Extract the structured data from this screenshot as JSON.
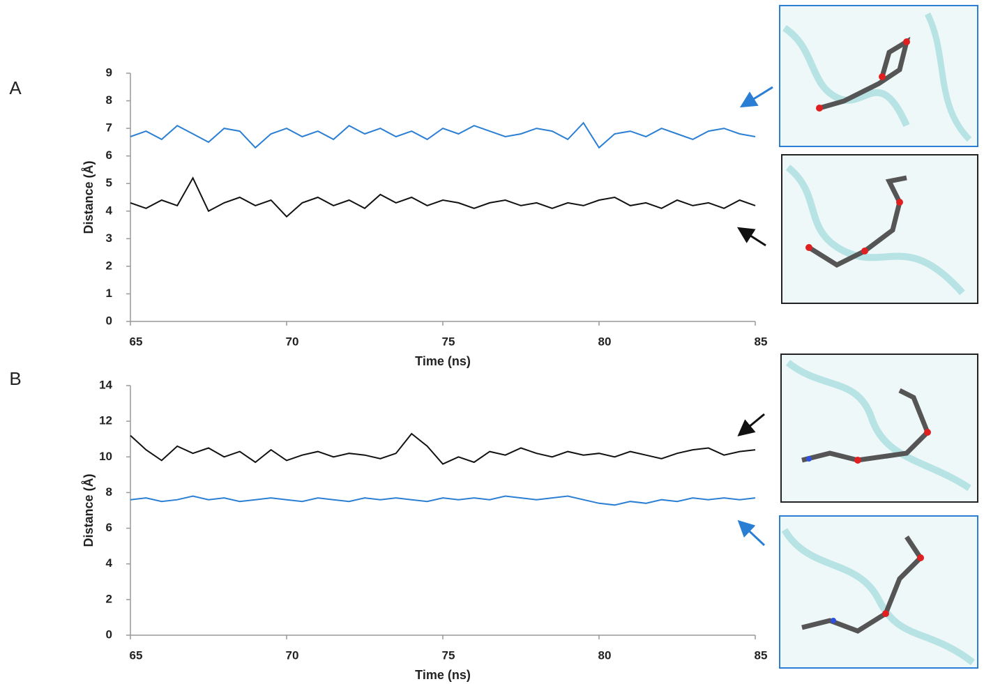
{
  "chart_data": [
    {
      "type": "line",
      "panel": "A",
      "xlabel": "Time (ns)",
      "ylabel": "Distance (Å)",
      "x": [
        65,
        65.5,
        66,
        66.5,
        67,
        67.5,
        68,
        68.5,
        69,
        69.5,
        70,
        70.5,
        71,
        71.5,
        72,
        72.5,
        73,
        73.5,
        74,
        74.5,
        75,
        75.5,
        76,
        76.5,
        77,
        77.5,
        78,
        78.5,
        79,
        79.5,
        80,
        80.5,
        81,
        81.5,
        82,
        82.5,
        83,
        83.5,
        84,
        84.5,
        85
      ],
      "series": [
        {
          "color": "#2a7fd4",
          "values": [
            6.7,
            6.9,
            6.6,
            7.1,
            6.8,
            6.5,
            7.0,
            6.9,
            6.3,
            6.8,
            7.0,
            6.7,
            6.9,
            6.6,
            7.1,
            6.8,
            7.0,
            6.7,
            6.9,
            6.6,
            7.0,
            6.8,
            7.1,
            6.9,
            6.7,
            6.8,
            7.0,
            6.9,
            6.6,
            7.2,
            6.3,
            6.8,
            6.9,
            6.7,
            7.0,
            6.8,
            6.6,
            6.9,
            7.0,
            6.8,
            6.7
          ]
        },
        {
          "color": "#111111",
          "values": [
            4.3,
            4.1,
            4.4,
            4.2,
            5.2,
            4.0,
            4.3,
            4.5,
            4.2,
            4.4,
            3.8,
            4.3,
            4.5,
            4.2,
            4.4,
            4.1,
            4.6,
            4.3,
            4.5,
            4.2,
            4.4,
            4.3,
            4.1,
            4.3,
            4.4,
            4.2,
            4.3,
            4.1,
            4.3,
            4.2,
            4.4,
            4.5,
            4.2,
            4.3,
            4.1,
            4.4,
            4.2,
            4.3,
            4.1,
            4.4,
            4.2
          ]
        }
      ],
      "xlim": [
        65,
        85
      ],
      "xticks": [
        65,
        70,
        75,
        80,
        85
      ],
      "ylim": [
        0,
        9
      ],
      "yticks": [
        0,
        1,
        2,
        3,
        4,
        5,
        6,
        7,
        8,
        9
      ]
    },
    {
      "type": "line",
      "panel": "B",
      "xlabel": "Time (ns)",
      "ylabel": "Distance (Å)",
      "x": [
        65,
        65.5,
        66,
        66.5,
        67,
        67.5,
        68,
        68.5,
        69,
        69.5,
        70,
        70.5,
        71,
        71.5,
        72,
        72.5,
        73,
        73.5,
        74,
        74.5,
        75,
        75.5,
        76,
        76.5,
        77,
        77.5,
        78,
        78.5,
        79,
        79.5,
        80,
        80.5,
        81,
        81.5,
        82,
        82.5,
        83,
        83.5,
        84,
        84.5,
        85
      ],
      "series": [
        {
          "color": "#111111",
          "values": [
            11.2,
            10.4,
            9.8,
            10.6,
            10.2,
            10.5,
            10.0,
            10.3,
            9.7,
            10.4,
            9.8,
            10.1,
            10.3,
            10.0,
            10.2,
            10.1,
            9.9,
            10.2,
            11.3,
            10.6,
            9.6,
            10.0,
            9.7,
            10.3,
            10.1,
            10.5,
            10.2,
            10.0,
            10.3,
            10.1,
            10.2,
            10.0,
            10.3,
            10.1,
            9.9,
            10.2,
            10.4,
            10.5,
            10.1,
            10.3,
            10.4
          ]
        },
        {
          "color": "#2a7fd4",
          "values": [
            7.6,
            7.7,
            7.5,
            7.6,
            7.8,
            7.6,
            7.7,
            7.5,
            7.6,
            7.7,
            7.6,
            7.5,
            7.7,
            7.6,
            7.5,
            7.7,
            7.6,
            7.7,
            7.6,
            7.5,
            7.7,
            7.6,
            7.7,
            7.6,
            7.8,
            7.7,
            7.6,
            7.7,
            7.8,
            7.6,
            7.4,
            7.3,
            7.5,
            7.4,
            7.6,
            7.5,
            7.7,
            7.6,
            7.7,
            7.6,
            7.7
          ]
        }
      ],
      "xlim": [
        65,
        85
      ],
      "xticks": [
        65,
        70,
        75,
        80,
        85
      ],
      "ylim": [
        0,
        14
      ],
      "yticks": [
        0,
        2,
        4,
        6,
        8,
        10,
        12,
        14
      ]
    }
  ]
}
